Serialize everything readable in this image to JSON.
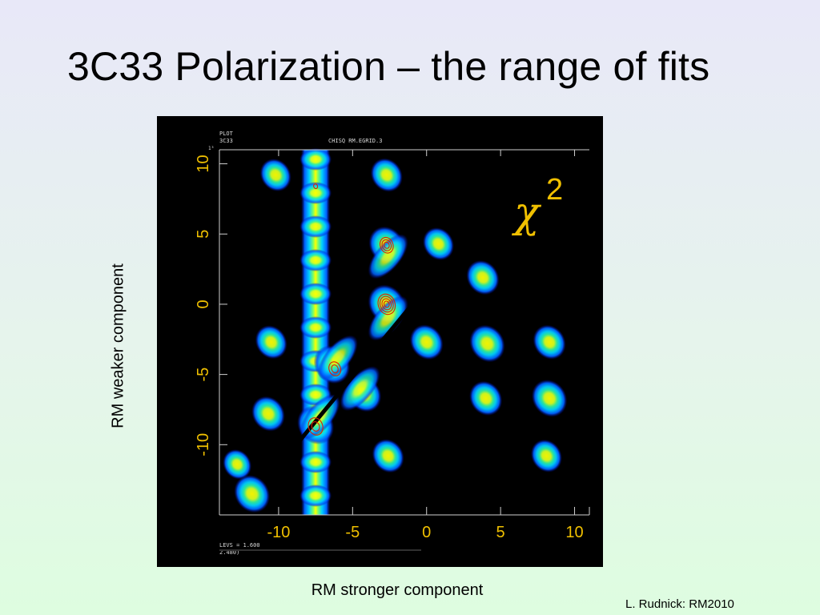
{
  "title": "3C33 Polarization – the range of fits",
  "ylabel": "RM weaker component",
  "xlabel": "RM stronger component",
  "credit": "L. Rudnick:  RM2010",
  "plot_header": {
    "line1": "PLOT",
    "line2": "3C33",
    "file": "CHISQ RM.EGRID.3",
    "corner": "1³",
    "levs_line1": "LEVS = 1.600",
    "levs_line2": "2.480)"
  },
  "symbol": {
    "chi": "χ",
    "exp": "2"
  },
  "colors": {
    "accent_text": "#f0c000",
    "contour": "#e02000",
    "background": "#000000"
  },
  "chart_data": {
    "type": "heatmap",
    "title": "",
    "xlabel": "RM stronger component",
    "ylabel": "RM weaker component",
    "xlim": [
      -14,
      11
    ],
    "ylim": [
      -15,
      11
    ],
    "x_ticks": [
      -10,
      -5,
      0,
      5,
      10
    ],
    "y_ticks": [
      -10,
      -5,
      0,
      5,
      10
    ],
    "x_tick_labels": [
      "-10",
      "-5",
      "0",
      "5",
      "10"
    ],
    "y_tick_labels": [
      "-10",
      "-5",
      "0",
      "5",
      "10"
    ],
    "value_label": "χ2",
    "contour_levels_label": "LEVS = 1.600",
    "column_x": -7.5,
    "blobs": [
      {
        "x": -10.2,
        "y": 9.2,
        "strength": 0.45
      },
      {
        "x": -2.7,
        "y": 9.2,
        "strength": 0.5
      },
      {
        "x": -2.7,
        "y": 4.2,
        "strength": 0.72
      },
      {
        "x": 0.8,
        "y": 4.3,
        "strength": 0.45
      },
      {
        "x": 3.8,
        "y": 1.9,
        "strength": 0.55
      },
      {
        "x": -2.7,
        "y": 0.0,
        "strength": 0.8
      },
      {
        "x": 0.0,
        "y": -2.7,
        "strength": 0.58
      },
      {
        "x": -10.5,
        "y": -2.7,
        "strength": 0.5
      },
      {
        "x": 4.1,
        "y": -2.8,
        "strength": 0.7
      },
      {
        "x": 8.3,
        "y": -2.7,
        "strength": 0.55
      },
      {
        "x": -6.4,
        "y": -4.3,
        "strength": 0.75
      },
      {
        "x": -4.2,
        "y": -6.4,
        "strength": 0.6
      },
      {
        "x": -10.7,
        "y": -7.8,
        "strength": 0.58
      },
      {
        "x": 4.0,
        "y": -6.7,
        "strength": 0.55
      },
      {
        "x": 8.3,
        "y": -6.7,
        "strength": 0.7
      },
      {
        "x": -7.5,
        "y": -8.6,
        "strength": 0.78
      },
      {
        "x": -2.6,
        "y": -10.8,
        "strength": 0.5
      },
      {
        "x": 8.1,
        "y": -10.8,
        "strength": 0.45
      },
      {
        "x": -12.8,
        "y": -11.4,
        "strength": 0.3
      },
      {
        "x": -11.8,
        "y": -13.5,
        "strength": 0.72
      }
    ]
  }
}
